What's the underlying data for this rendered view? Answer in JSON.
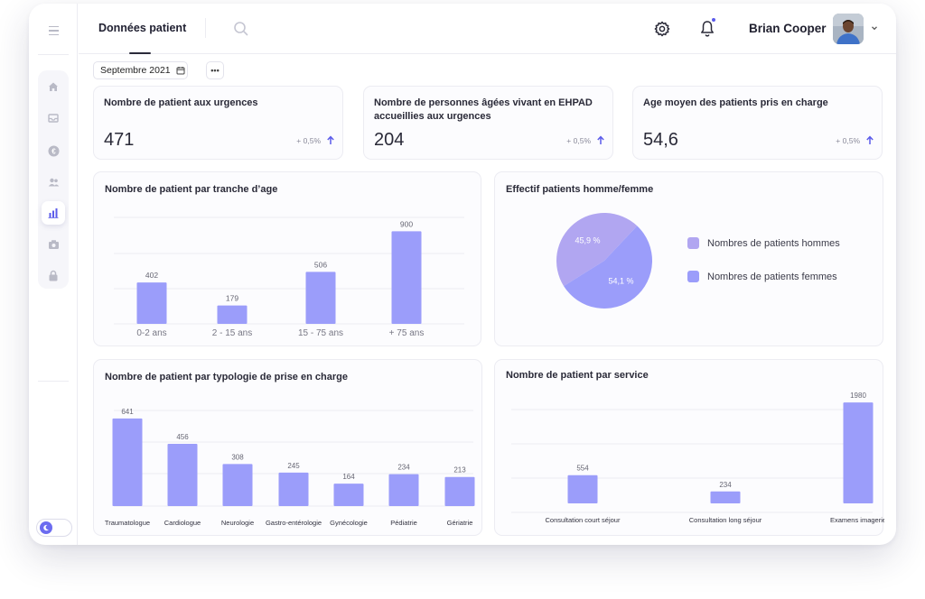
{
  "header": {
    "tab_label": "Données patient",
    "user_name": "Brian Cooper"
  },
  "toolbar": {
    "date_label": "Septembre 2021",
    "more_label": "•••"
  },
  "sidebar": {
    "items": [
      {
        "icon": "home-icon"
      },
      {
        "icon": "inbox-icon"
      },
      {
        "icon": "euro-icon"
      },
      {
        "icon": "users-icon"
      },
      {
        "icon": "bar-chart-icon",
        "active": true
      },
      {
        "icon": "camera-icon"
      },
      {
        "icon": "lock-icon"
      }
    ]
  },
  "stats": [
    {
      "title": "Nombre de patient aux urgences",
      "value": "471",
      "delta": "+ 0,5%"
    },
    {
      "title": "Nombre de personnes âgées vivant en EHPAD accueillies aux urgences",
      "value": "204",
      "delta": "+ 0,5%"
    },
    {
      "title": "Age moyen des patients pris en charge",
      "value": "54,6",
      "delta": "+ 0,5%"
    }
  ],
  "colors": {
    "bar": "#9b9dfa",
    "pie_men": "#b1a6f1",
    "pie_women": "#9b9dfa",
    "accent": "#5b5bea"
  },
  "chart_data": [
    {
      "id": "age",
      "type": "bar",
      "title": "Nombre de patient par tranche d’age",
      "categories": [
        "0-2 ans",
        "2 - 15 ans",
        "15 - 75 ans",
        "+ 75 ans"
      ],
      "values": [
        402,
        179,
        506,
        900
      ],
      "ylim": [
        0,
        1000
      ],
      "grid": true
    },
    {
      "id": "sexe",
      "type": "pie",
      "title": "Effectif patients homme/femme",
      "categories": [
        "Nombres de patients hommes",
        "Nombres de patients femmes"
      ],
      "values": [
        45.9,
        54.1
      ],
      "data_labels": [
        "45,9 %",
        "54,1 %"
      ],
      "legend": "right"
    },
    {
      "id": "typologie",
      "type": "bar",
      "title": "Nombre de patient par typologie de prise en charge",
      "categories": [
        "Traumatologue",
        "Cardiologue",
        "Neurologie",
        "Gastro-entérologie",
        "Gynécologie",
        "Pédiatrie",
        "Gériatrie"
      ],
      "values": [
        641,
        456,
        308,
        245,
        164,
        234,
        213
      ],
      "grid": true
    },
    {
      "id": "service",
      "type": "bar",
      "title": "Nombre de patient par service",
      "categories": [
        "Consultation court séjour",
        "Consultation long séjour",
        "Examens imagerie"
      ],
      "values": [
        554,
        234,
        1980
      ],
      "grid": true
    }
  ]
}
